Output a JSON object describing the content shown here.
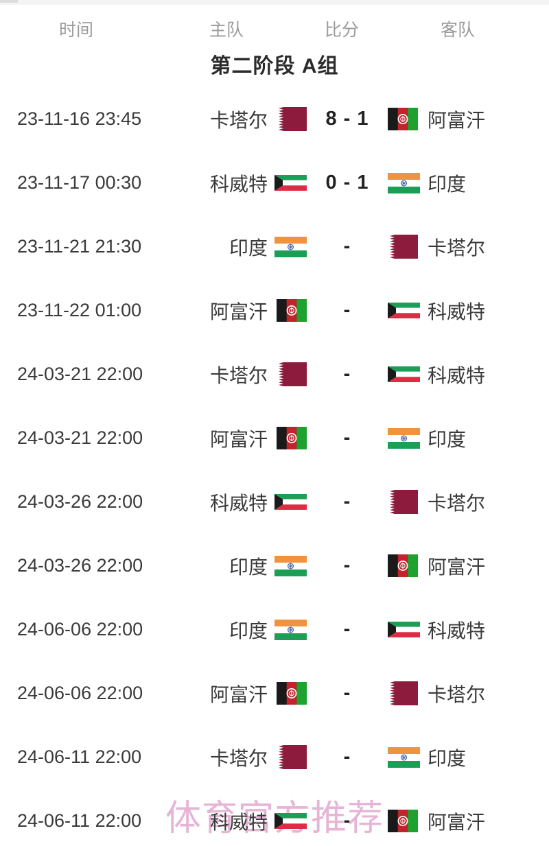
{
  "header": {
    "time": "时间",
    "home": "主队",
    "score": "比分",
    "away": "客队"
  },
  "section_title": "第二阶段 A组",
  "watermark": "体育官方推荐",
  "colors": {
    "header_text": "#9b9b9b",
    "body_text": "#3a3a3a",
    "score_text": "#222222",
    "title_text": "#2b2b2b",
    "watermark_pink": "#e2a9cf",
    "top_strip": "#f4f4f4"
  },
  "flag_colors": {
    "qatar": {
      "maroon": "#8d1b3d",
      "white": "#ffffff"
    },
    "afghanistan": {
      "black": "#1a1a1a",
      "red": "#c3242b",
      "green": "#1fa12f",
      "emblem": "#ffffff"
    },
    "kuwait": {
      "green": "#1d9e57",
      "white": "#ffffff",
      "red": "#dd2c44",
      "black": "#1a1a1a"
    },
    "india": {
      "saffron": "#f0933e",
      "white": "#ffffff",
      "green": "#1d9e57",
      "navy": "#3757a5"
    }
  },
  "matches": [
    {
      "time": "23-11-16 23:45",
      "home": "卡塔尔",
      "home_flag": "qatar",
      "score": "8 - 1",
      "away": "阿富汗",
      "away_flag": "afghanistan"
    },
    {
      "time": "23-11-17 00:30",
      "home": "科威特",
      "home_flag": "kuwait",
      "score": "0 - 1",
      "away": "印度",
      "away_flag": "india"
    },
    {
      "time": "23-11-21 21:30",
      "home": "印度",
      "home_flag": "india",
      "score": "-",
      "away": "卡塔尔",
      "away_flag": "qatar"
    },
    {
      "time": "23-11-22 01:00",
      "home": "阿富汗",
      "home_flag": "afghanistan",
      "score": "-",
      "away": "科威特",
      "away_flag": "kuwait"
    },
    {
      "time": "24-03-21 22:00",
      "home": "卡塔尔",
      "home_flag": "qatar",
      "score": "-",
      "away": "科威特",
      "away_flag": "kuwait"
    },
    {
      "time": "24-03-21 22:00",
      "home": "阿富汗",
      "home_flag": "afghanistan",
      "score": "-",
      "away": "印度",
      "away_flag": "india"
    },
    {
      "time": "24-03-26 22:00",
      "home": "科威特",
      "home_flag": "kuwait",
      "score": "-",
      "away": "卡塔尔",
      "away_flag": "qatar"
    },
    {
      "time": "24-03-26 22:00",
      "home": "印度",
      "home_flag": "india",
      "score": "-",
      "away": "阿富汗",
      "away_flag": "afghanistan"
    },
    {
      "time": "24-06-06 22:00",
      "home": "印度",
      "home_flag": "india",
      "score": "-",
      "away": "科威特",
      "away_flag": "kuwait"
    },
    {
      "time": "24-06-06 22:00",
      "home": "阿富汗",
      "home_flag": "afghanistan",
      "score": "-",
      "away": "卡塔尔",
      "away_flag": "qatar"
    },
    {
      "time": "24-06-11 22:00",
      "home": "卡塔尔",
      "home_flag": "qatar",
      "score": "-",
      "away": "印度",
      "away_flag": "india"
    },
    {
      "time": "24-06-11 22:00",
      "home": "科威特",
      "home_flag": "kuwait",
      "score": "-",
      "away": "阿富汗",
      "away_flag": "afghanistan"
    }
  ]
}
